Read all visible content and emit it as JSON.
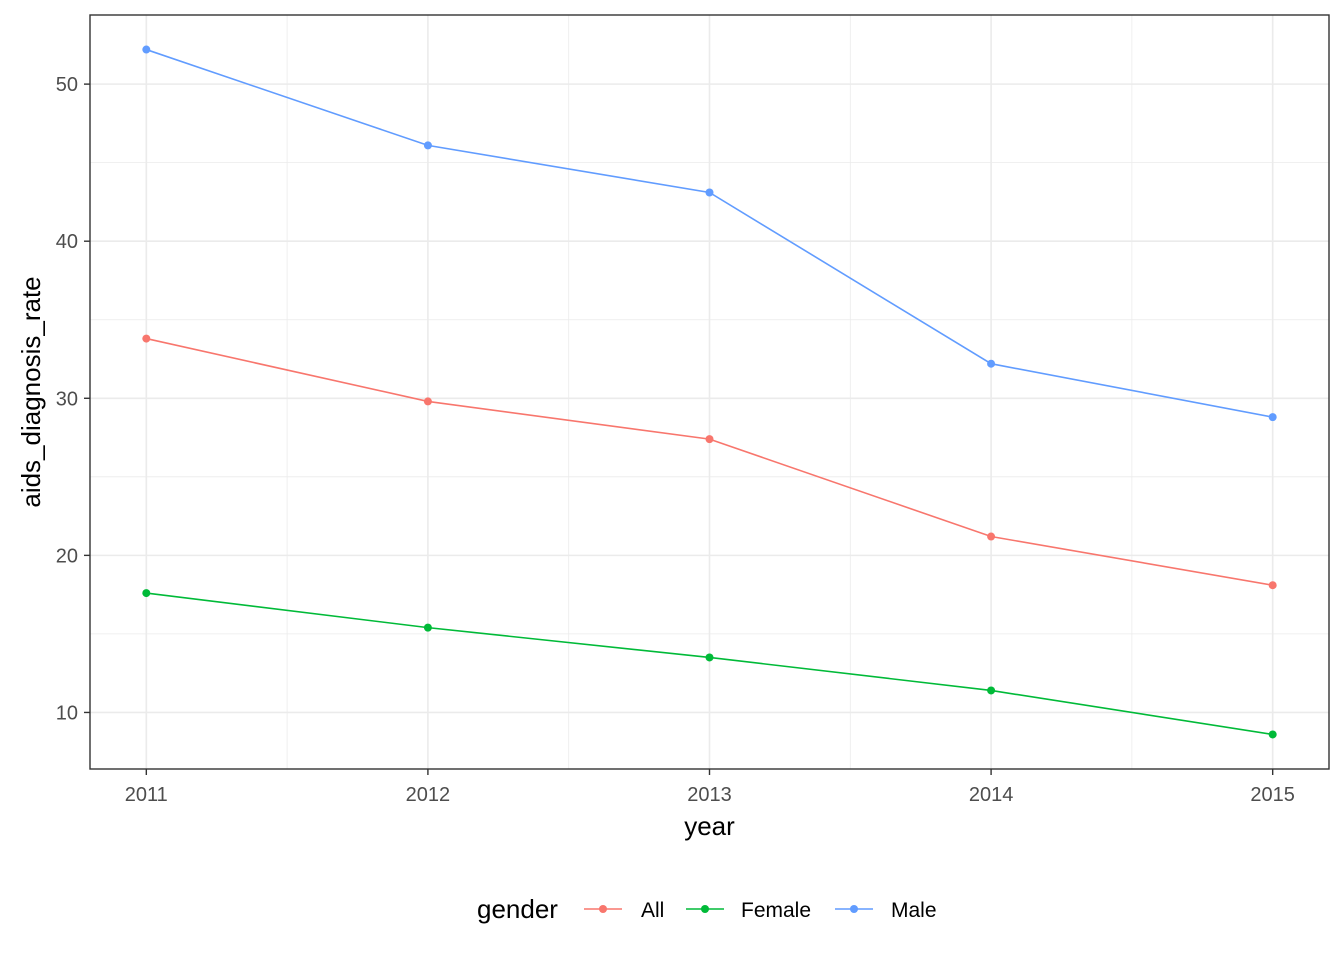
{
  "chart_data": {
    "type": "line",
    "title": "",
    "xlabel": "year",
    "ylabel": "aids_diagnosis_rate",
    "x": [
      2011,
      2012,
      2013,
      2014,
      2015
    ],
    "x_tick_labels": [
      "2011",
      "2012",
      "2013",
      "2014",
      "2015"
    ],
    "y_ticks": [
      10,
      20,
      30,
      40,
      50
    ],
    "y_tick_labels": [
      "10",
      "20",
      "30",
      "40",
      "50"
    ],
    "xlim": [
      2010.8,
      2015.2
    ],
    "ylim": [
      6.4,
      54.4
    ],
    "grid": true,
    "legend": {
      "title": "gender",
      "position": "bottom"
    },
    "series": [
      {
        "name": "All",
        "color": "#F8766D",
        "values": [
          33.8,
          29.8,
          27.4,
          21.2,
          18.1
        ]
      },
      {
        "name": "Female",
        "color": "#00BA38",
        "values": [
          17.6,
          15.4,
          13.5,
          11.4,
          8.6
        ]
      },
      {
        "name": "Male",
        "color": "#619CFF",
        "values": [
          52.2,
          46.1,
          43.1,
          32.2,
          28.8
        ]
      }
    ]
  }
}
